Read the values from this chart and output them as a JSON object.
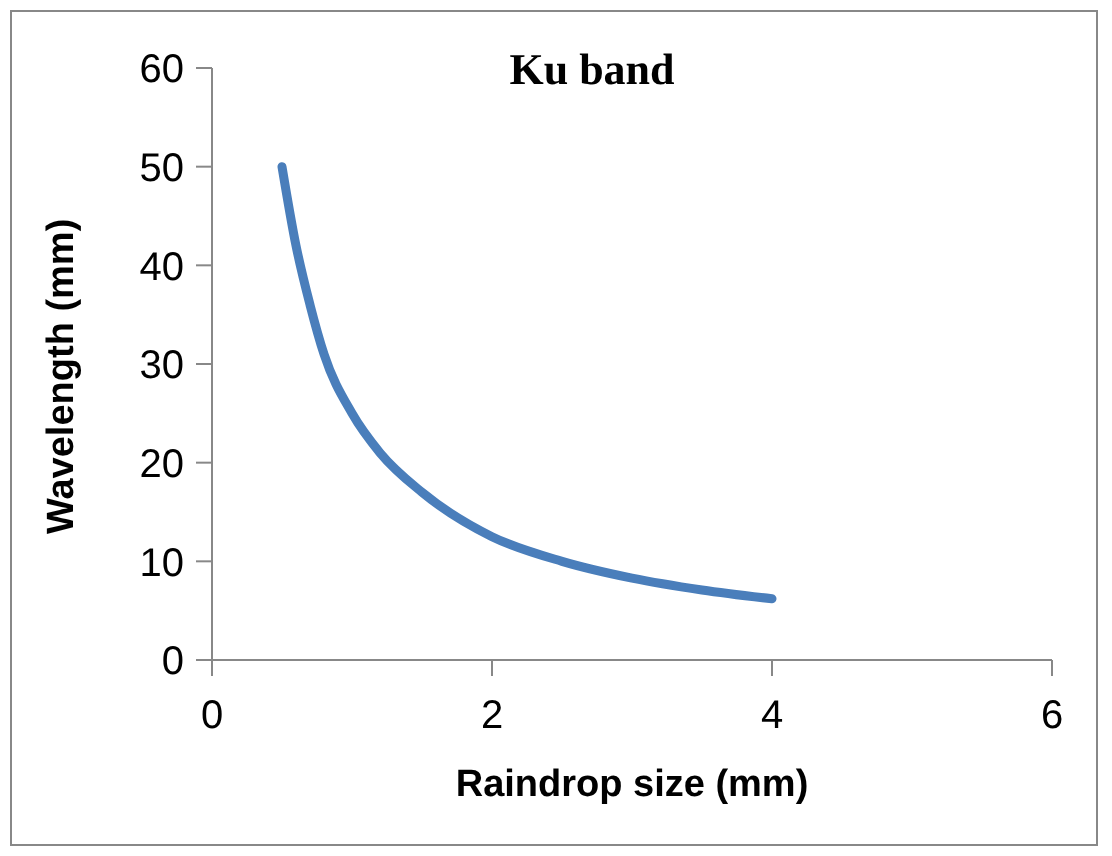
{
  "chart_data": {
    "type": "line",
    "title": "Ku band",
    "xlabel": "Raindrop size (mm)",
    "ylabel": "Wavelength (mm)",
    "series": [
      {
        "color": "#4a7ebb",
        "x": [
          0.5,
          0.6,
          0.7,
          0.8,
          1,
          1.2,
          1.5,
          2,
          2.5,
          3,
          3.5,
          4
        ],
        "values": [
          50,
          42,
          36,
          31,
          25,
          21,
          17,
          12.5,
          10,
          8.3,
          7.1,
          6.2
        ]
      }
    ],
    "xlim": [
      0,
      6
    ],
    "xticks": [
      0,
      2,
      4,
      6
    ],
    "ylim": [
      0,
      60
    ],
    "yticks": [
      0,
      10,
      20,
      30,
      40,
      50,
      60
    ],
    "grid": false,
    "marker": "none",
    "line_style": "solid"
  }
}
